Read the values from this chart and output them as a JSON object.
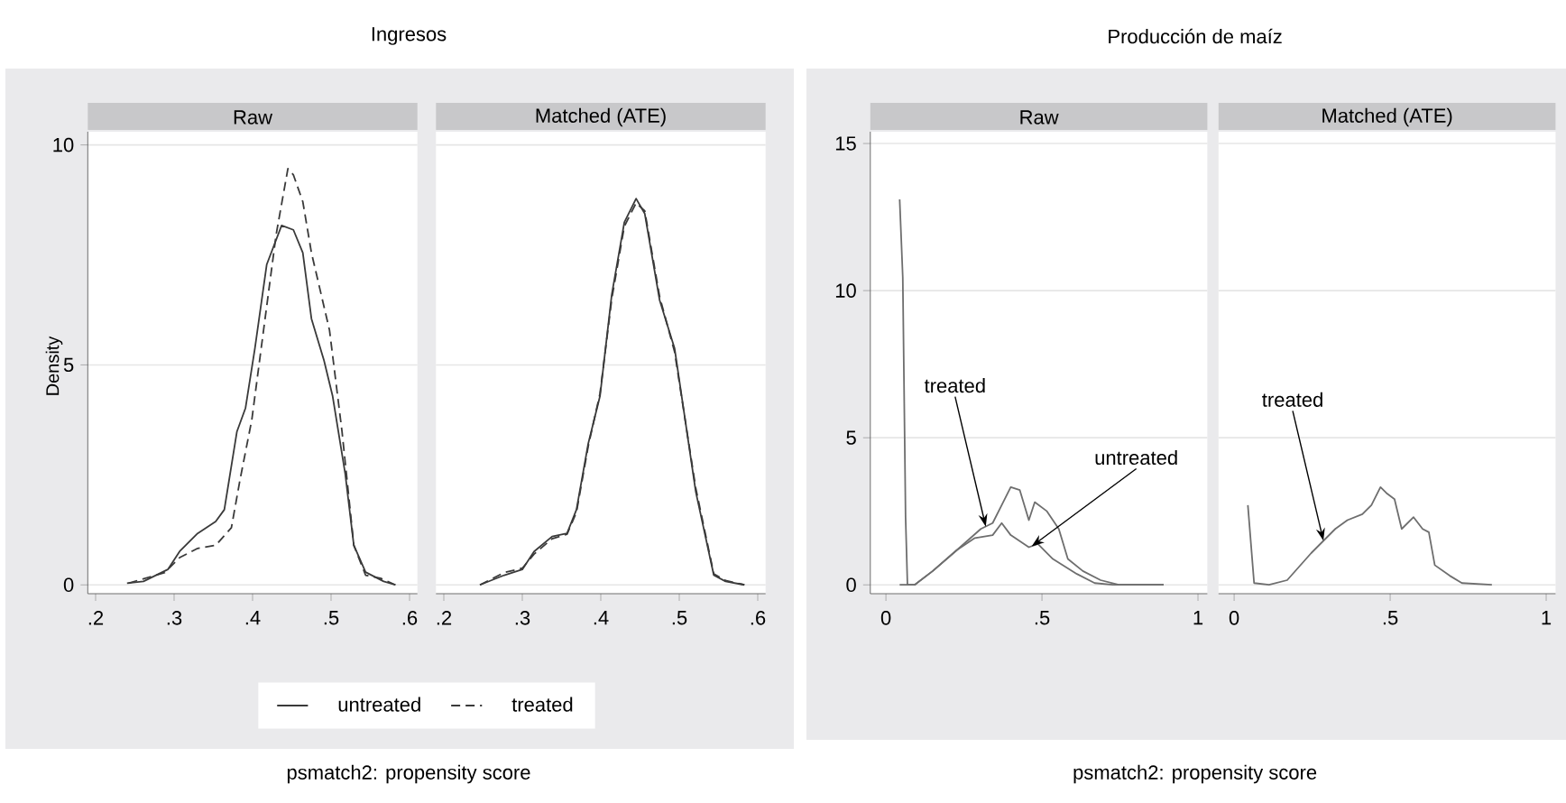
{
  "chart_data": [
    {
      "type": "line",
      "title": "Ingresos",
      "subtitle": "Raw",
      "xlabel": "psmatch2: propensity score",
      "ylabel": "Density",
      "xlim": [
        0.19,
        0.61
      ],
      "ylim": [
        -0.2,
        10.3
      ],
      "xticks": [
        {
          "value": 0.2,
          "label": ".2"
        },
        {
          "value": 0.3,
          "label": ".3"
        },
        {
          "value": 0.4,
          "label": ".4"
        },
        {
          "value": 0.5,
          "label": ".5"
        },
        {
          "value": 0.6,
          "label": ".6"
        }
      ],
      "yticks": [
        0,
        5,
        10
      ],
      "grid": "y",
      "legend": "bottom",
      "series": [
        {
          "name": "untreated",
          "color": "#3a3a3a",
          "line_style": "solid",
          "x": [
            0.24,
            0.261,
            0.292,
            0.307,
            0.33,
            0.353,
            0.364,
            0.38,
            0.391,
            0.403,
            0.418,
            0.437,
            0.452,
            0.464,
            0.475,
            0.491,
            0.502,
            0.518,
            0.529,
            0.544,
            0.567,
            0.582
          ],
          "values": [
            0.04,
            0.08,
            0.35,
            0.76,
            1.17,
            1.44,
            1.71,
            3.48,
            4.02,
            5.38,
            7.28,
            8.17,
            8.07,
            7.55,
            6.05,
            5.1,
            4.29,
            2.53,
            0.9,
            0.29,
            0.08,
            0
          ]
        },
        {
          "name": "treated",
          "color": "#3a3a3a",
          "line_style": "dashed",
          "x": [
            0.242,
            0.288,
            0.307,
            0.33,
            0.353,
            0.373,
            0.384,
            0.399,
            0.414,
            0.43,
            0.445,
            0.452,
            0.464,
            0.475,
            0.498,
            0.514,
            0.529,
            0.544,
            0.563,
            0.582
          ],
          "values": [
            0.04,
            0.28,
            0.62,
            0.83,
            0.9,
            1.3,
            2.39,
            3.75,
            5.79,
            7.96,
            9.46,
            9.32,
            8.71,
            7.55,
            5.79,
            3.48,
            0.9,
            0.22,
            0.15,
            0
          ]
        }
      ]
    },
    {
      "type": "line",
      "subtitle": "Matched (ATE)",
      "xlim": [
        0.19,
        0.61
      ],
      "ylim": [
        -0.2,
        10.3
      ],
      "xticks": [
        {
          "value": 0.2,
          "label": ".2"
        },
        {
          "value": 0.3,
          "label": ".3"
        },
        {
          "value": 0.4,
          "label": ".4"
        },
        {
          "value": 0.5,
          "label": ".5"
        },
        {
          "value": 0.6,
          "label": ".6"
        }
      ],
      "yticks": [
        0,
        5,
        10
      ],
      "grid": "y",
      "tick_labels": "x",
      "series": [
        {
          "color": "#3a3a3a",
          "line_style": "solid",
          "x": [
            0.246,
            0.277,
            0.3,
            0.315,
            0.338,
            0.357,
            0.369,
            0.384,
            0.399,
            0.414,
            0.43,
            0.445,
            0.456,
            0.475,
            0.494,
            0.521,
            0.544,
            0.559,
            0.583
          ],
          "values": [
            0,
            0.22,
            0.35,
            0.76,
            1.1,
            1.17,
            1.71,
            3.21,
            4.29,
            6.6,
            8.24,
            8.78,
            8.44,
            6.47,
            5.38,
            2.12,
            0.22,
            0.08,
            0
          ]
        },
        {
          "color": "#3a3a3a",
          "line_style": "dashed",
          "x": [
            0.246,
            0.277,
            0.3,
            0.315,
            0.338,
            0.357,
            0.369,
            0.384,
            0.399,
            0.414,
            0.43,
            0.445,
            0.456,
            0.475,
            0.494,
            0.521,
            0.544,
            0.559,
            0.583
          ],
          "values": [
            0,
            0.28,
            0.38,
            0.7,
            1.05,
            1.15,
            1.65,
            3.15,
            4.35,
            6.5,
            8.15,
            8.68,
            8.5,
            6.55,
            5.3,
            2.2,
            0.25,
            0.1,
            0
          ]
        }
      ]
    },
    {
      "type": "line",
      "title": "Producción de maíz",
      "subtitle": "Raw",
      "xlabel": "psmatch2: propensity score",
      "xlim": [
        -0.05,
        1.03
      ],
      "ylim": [
        -0.3,
        15.4
      ],
      "xticks": [
        0,
        {
          "value": 0.5,
          "label": ".5"
        },
        1
      ],
      "yticks": [
        0,
        5,
        10,
        15
      ],
      "grid": "y",
      "annotations": [
        {
          "text": "treated",
          "x": 0.32,
          "y": 1.98
        },
        {
          "text": "untreated",
          "x": 0.467,
          "y": 1.31
        }
      ],
      "series": [
        {
          "color": "#6e6e6e",
          "line_style": "solid",
          "x": [
            0.044,
            0.092,
            0.15,
            0.227,
            0.304,
            0.342,
            0.371,
            0.4,
            0.429,
            0.458,
            0.477,
            0.515,
            0.554,
            0.583,
            0.631,
            0.688,
            0.746,
            0.89
          ],
          "values": [
            0,
            0,
            0.47,
            1.18,
            1.9,
            2.1,
            2.71,
            3.32,
            3.22,
            2.2,
            2.81,
            2.51,
            1.9,
            0.88,
            0.47,
            0.16,
            0,
            0
          ]
        },
        {
          "color": "#6e6e6e",
          "line_style": "solid",
          "x": [
            0.044,
            0.054,
            0.063,
            0.069,
            0.092,
            0.15,
            0.227,
            0.285,
            0.342,
            0.371,
            0.4,
            0.458,
            0.487,
            0.535,
            0.612,
            0.669,
            0.727,
            0.89
          ],
          "values": [
            13.1,
            10.45,
            2.3,
            0,
            0,
            0.47,
            1.18,
            1.59,
            1.69,
            2.1,
            1.69,
            1.28,
            1.39,
            0.88,
            0.37,
            0.06,
            0,
            0
          ]
        }
      ]
    },
    {
      "type": "line",
      "subtitle": "Matched (ATE)",
      "xlim": [
        -0.05,
        1.03
      ],
      "ylim": [
        -0.3,
        15.4
      ],
      "xticks": [
        0,
        {
          "value": 0.5,
          "label": ".5"
        },
        1
      ],
      "yticks": [
        0,
        5,
        10,
        15
      ],
      "grid": "y",
      "tick_labels": "x",
      "annotations": [
        {
          "text": "treated",
          "x": 0.286,
          "y": 1.5
        }
      ],
      "series": [
        {
          "color": "#6e6e6e",
          "line_style": "solid",
          "x": [
            0.044,
            0.064,
            0.112,
            0.17,
            0.247,
            0.324,
            0.363,
            0.411,
            0.44,
            0.469,
            0.488,
            0.514,
            0.537,
            0.575,
            0.604,
            0.624,
            0.643,
            0.691,
            0.73,
            0.826
          ],
          "values": [
            2.71,
            0.06,
            0,
            0.16,
            1.08,
            1.9,
            2.2,
            2.4,
            2.71,
            3.32,
            3.12,
            2.91,
            1.9,
            2.3,
            1.9,
            1.79,
            0.67,
            0.31,
            0.06,
            0
          ]
        }
      ]
    }
  ]
}
